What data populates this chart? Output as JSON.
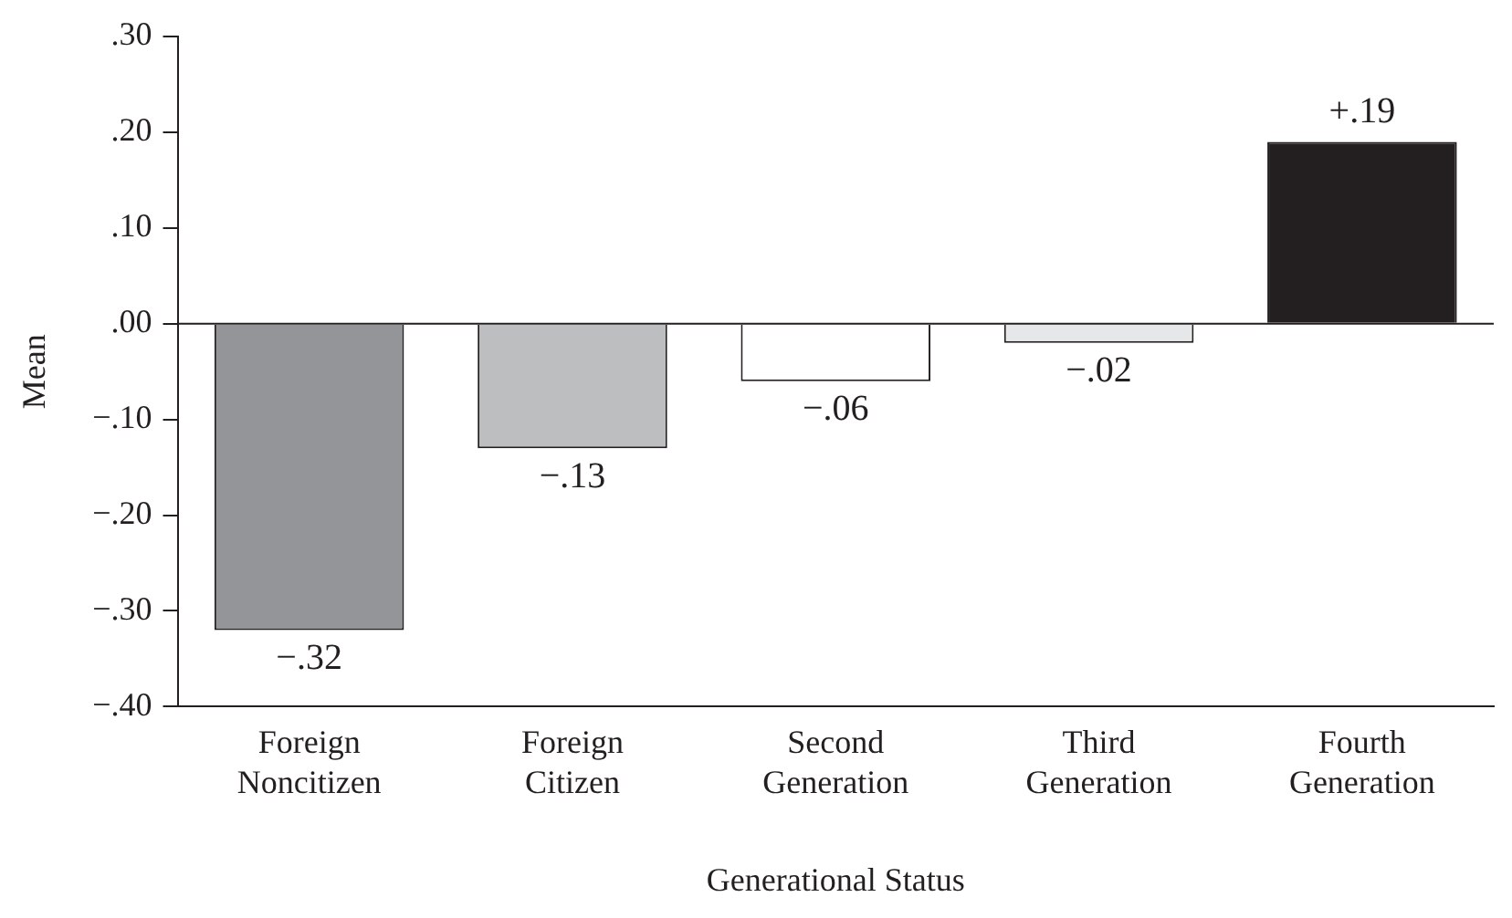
{
  "chart_data": {
    "type": "bar",
    "xlabel": "Generational Status",
    "ylabel": "Mean",
    "categories": [
      "Foreign Noncitizen",
      "Foreign Citizen",
      "Second Generation",
      "Third Generation",
      "Fourth Generation"
    ],
    "values": [
      -0.32,
      -0.13,
      -0.06,
      -0.02,
      0.19
    ],
    "colors": [
      "#939598",
      "#bcbec0",
      "#ffffff",
      "#e6e7e8",
      "#231f20"
    ],
    "value_labels": [
      "−.32",
      "−.13",
      "−.06",
      "−.02",
      "+.19"
    ],
    "ylim": [
      -0.4,
      0.3
    ],
    "yticks": [
      {
        "value": -0.4,
        "label": "−.40"
      },
      {
        "value": -0.3,
        "label": "−.30"
      },
      {
        "value": -0.2,
        "label": "−.20"
      },
      {
        "value": -0.1,
        "label": "−.10"
      },
      {
        "value": 0,
        "label": ".00"
      },
      {
        "value": 0.1,
        "label": ".10"
      },
      {
        "value": 0.2,
        "label": ".20"
      },
      {
        "value": 0.3,
        "label": ".30"
      }
    ],
    "ref_lines": [
      {
        "axis": "y",
        "value": 0,
        "color": "#231f20"
      }
    ],
    "legend": false
  }
}
